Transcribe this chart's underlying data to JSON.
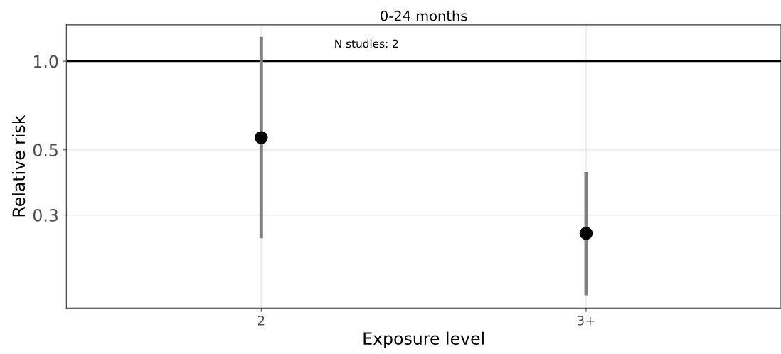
{
  "chart_data": {
    "type": "scatter",
    "title": "0-24 months",
    "xlabel": "Exposure level",
    "ylabel": "Relative risk",
    "categories": [
      "2",
      "3+"
    ],
    "series": [
      {
        "color": "#000000",
        "values": [
          0.55,
          0.26
        ],
        "errors": [
          [
            0.25,
            1.21
          ],
          [
            0.16,
            0.42
          ]
        ]
      }
    ],
    "log": "y",
    "ylim": [
      0.145,
      1.33
    ],
    "yticks": [
      {
        "value": 0.3,
        "label": "0.3"
      },
      {
        "value": 0.5,
        "label": "0.5"
      },
      {
        "value": 1.0,
        "label": "1.0"
      }
    ],
    "ref_lines": [
      {
        "axis": "y",
        "value": 1.0,
        "color": "#000000"
      }
    ],
    "annotations": [
      "N studies: 2"
    ],
    "grid": true,
    "marker": "circle"
  }
}
